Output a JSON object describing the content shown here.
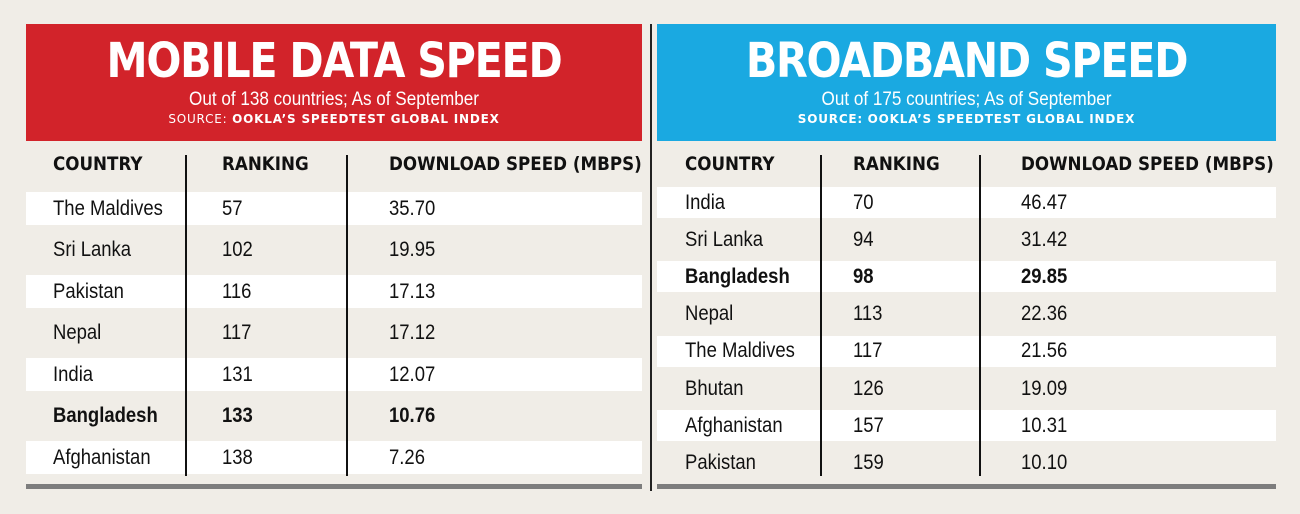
{
  "chart_data": [
    {
      "type": "table",
      "title": "MOBILE DATA SPEED",
      "subtitle": "Out of 138 countries; As of September",
      "source_label": "SOURCE:",
      "source_value": "OOKLA’S SPEEDTEST GLOBAL INDEX",
      "header_color": "#d2232a",
      "columns": [
        "COUNTRY",
        "RANKING",
        "DOWNLOAD SPEED (MBPS)"
      ],
      "rows": [
        {
          "country": "The Maldives",
          "ranking": "57",
          "speed": "35.70"
        },
        {
          "country": "Sri Lanka",
          "ranking": "102",
          "speed": "19.95"
        },
        {
          "country": "Pakistan",
          "ranking": "116",
          "speed": "17.13"
        },
        {
          "country": "Nepal",
          "ranking": "117",
          "speed": "17.12"
        },
        {
          "country": "India",
          "ranking": "131",
          "speed": "12.07"
        },
        {
          "country": "Bangladesh",
          "ranking": "133",
          "speed": "10.76",
          "highlight": true
        },
        {
          "country": "Afghanistan",
          "ranking": "138",
          "speed": "7.26"
        }
      ]
    },
    {
      "type": "table",
      "title": "BROADBAND SPEED",
      "subtitle": "Out of 175 countries; As of September",
      "source_label": "SOURCE:",
      "source_value": "OOKLA’S SPEEDTEST GLOBAL INDEX",
      "header_color": "#1aa9e1",
      "columns": [
        "COUNTRY",
        "RANKING",
        "DOWNLOAD SPEED (MBPS)"
      ],
      "rows": [
        {
          "country": "India",
          "ranking": "70",
          "speed": "46.47"
        },
        {
          "country": "Sri Lanka",
          "ranking": "94",
          "speed": "31.42"
        },
        {
          "country": "Bangladesh",
          "ranking": "98",
          "speed": "29.85",
          "highlight": true
        },
        {
          "country": "Nepal",
          "ranking": "113",
          "speed": "22.36"
        },
        {
          "country": "The Maldives",
          "ranking": "117",
          "speed": "21.56"
        },
        {
          "country": "Bhutan",
          "ranking": "126",
          "speed": "19.09"
        },
        {
          "country": "Afghanistan",
          "ranking": "157",
          "speed": "10.31"
        },
        {
          "country": "Pakistan",
          "ranking": "159",
          "speed": "10.10"
        }
      ]
    }
  ]
}
